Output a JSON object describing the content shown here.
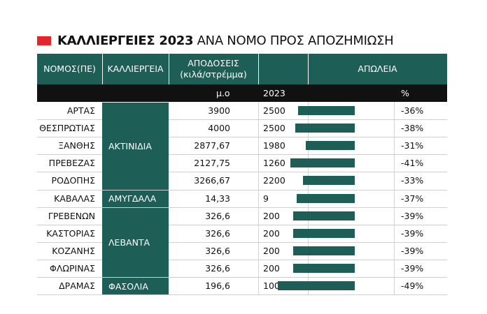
{
  "title": {
    "bold": "ΚΑΛΛΙΕΡΓΕΙΕΣ 2023",
    "rest": " ΑΝΑ ΝΟΜΟ ΠΡΟΣ ΑΠΟΖΗΜΙΩΣΗ"
  },
  "header": {
    "nomos": "ΝΟΜΟΣ(ΠΕ)",
    "crop": "ΚΑΛΛΙΕΡΓΕΙΑ",
    "yield_line1": "ΑΠΟΔΟΣΕΙΣ",
    "yield_line2": "(κιλά/στρέμμα)",
    "loss": "ΑΠΩΛΕΙΑ",
    "sub_mo": "μ.ο",
    "sub_2023": "2023",
    "sub_pct": "%"
  },
  "colors": {
    "accent": "#1d5f57",
    "title_mark": "#e3262b",
    "subheader": "#111111"
  },
  "crop_groups": [
    {
      "label": "ΑΚΤΙΝΙΔΙΑ",
      "start": 0,
      "span": 5
    },
    {
      "label": "ΑΜΥΓΔΑΛΑ",
      "start": 5,
      "span": 1
    },
    {
      "label": "ΛΕΒΑΝΤΑ",
      "start": 6,
      "span": 4
    },
    {
      "label": "ΦΑΣΟΛΙΑ",
      "start": 10,
      "span": 1
    }
  ],
  "chart_data": {
    "type": "table",
    "columns": [
      "ΝΟΜΟΣ(ΠΕ)",
      "ΚΑΛΛΙΕΡΓΕΙΑ",
      "μ.ο",
      "2023",
      "%"
    ],
    "rows": [
      {
        "nomos": "ΑΡΤΑΣ",
        "crop": "ΑΚΤΙΝΙΔΙΑ",
        "mo": "3900",
        "y2023": "2500",
        "pct_label": "-36%",
        "loss": 36
      },
      {
        "nomos": "ΘΕΣΠΡΩΤΙΑΣ",
        "crop": "ΑΚΤΙΝΙΔΙΑ",
        "mo": "4000",
        "y2023": "2500",
        "pct_label": "-38%",
        "loss": 38
      },
      {
        "nomos": "ΞΑΝΘΗΣ",
        "crop": "ΑΚΤΙΝΙΔΙΑ",
        "mo": "2877,67",
        "y2023": "1980",
        "pct_label": "-31%",
        "loss": 31
      },
      {
        "nomos": "ΠΡΕΒΕΖΑΣ",
        "crop": "ΑΚΤΙΝΙΔΙΑ",
        "mo": "2127,75",
        "y2023": "1260",
        "pct_label": "-41%",
        "loss": 41
      },
      {
        "nomos": "ΡΟΔΟΠΗΣ",
        "crop": "ΑΚΤΙΝΙΔΙΑ",
        "mo": "3266,67",
        "y2023": "2200",
        "pct_label": "-33%",
        "loss": 33
      },
      {
        "nomos": "ΚΑΒΑΛΑΣ",
        "crop": "ΑΜΥΓΔΑΛΑ",
        "mo": "14,33",
        "y2023": "9",
        "pct_label": "-37%",
        "loss": 37
      },
      {
        "nomos": "ΓΡΕΒΕΝΩΝ",
        "crop": "ΛΕΒΑΝΤΑ",
        "mo": "326,6",
        "y2023": "200",
        "pct_label": "-39%",
        "loss": 39
      },
      {
        "nomos": "ΚΑΣΤΟΡΙΑΣ",
        "crop": "ΛΕΒΑΝΤΑ",
        "mo": "326,6",
        "y2023": "200",
        "pct_label": "-39%",
        "loss": 39
      },
      {
        "nomos": "ΚΟΖΑΝΗΣ",
        "crop": "ΛΕΒΑΝΤΑ",
        "mo": "326,6",
        "y2023": "200",
        "pct_label": "-39%",
        "loss": 39
      },
      {
        "nomos": "ΦΛΩΡΙΝΑΣ",
        "crop": "ΛΕΒΑΝΤΑ",
        "mo": "326,6",
        "y2023": "200",
        "pct_label": "-39%",
        "loss": 39
      },
      {
        "nomos": "ΔΡΑΜΑΣ",
        "crop": "ΦΑΣΟΛΙΑ",
        "mo": "196,6",
        "y2023": "100",
        "pct_label": "-49%",
        "loss": 49
      }
    ]
  }
}
